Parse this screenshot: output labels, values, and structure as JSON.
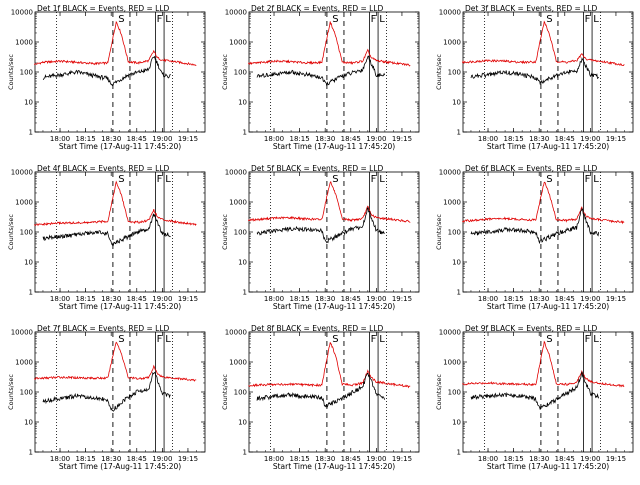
{
  "figure": {
    "ylabel": "Counts/sec",
    "xlabel": "Start Time (17-Aug-11 17:45:20)",
    "x_tick_labels": [
      "18:00",
      "18:15",
      "18:30",
      "18:45",
      "19:00",
      "19:15"
    ],
    "y_tick_labels": [
      "1",
      "10",
      "100",
      "1000",
      "10000"
    ],
    "marker_labels": {
      "S": "S",
      "F": "F",
      "L": "L"
    },
    "colors": {
      "events": "#000000",
      "lld": "#e00000"
    }
  },
  "chart_data": [
    {
      "type": "line",
      "title": "Det 1f BLACK = Events, RED = LLD",
      "xlabel": "Start Time (17-Aug-11 17:45:20)",
      "ylabel": "Counts/sec",
      "y_scale": "log",
      "ylim": [
        1,
        10000
      ],
      "x_ticks": [
        "18:00",
        "18:15",
        "18:30",
        "18:45",
        "19:00",
        "19:15"
      ],
      "markers": {
        "dotted": [
          "17:58",
          "19:06"
        ],
        "S_dashed": [
          "18:31",
          "18:41"
        ],
        "F_L_solid": [
          "18:56",
          "19:01"
        ]
      },
      "series": [
        {
          "color": "#e00000",
          "x": [
            "17:45",
            "17:50",
            "18:00",
            "18:10",
            "18:20",
            "18:28",
            "18:33",
            "18:36",
            "18:40",
            "18:46",
            "18:52",
            "18:55",
            "18:57",
            "19:00",
            "19:10",
            "19:20"
          ],
          "values": [
            180,
            210,
            230,
            210,
            190,
            200,
            4800,
            1800,
            220,
            200,
            240,
            500,
            300,
            250,
            210,
            170
          ]
        },
        {
          "color": "#000000",
          "x": [
            "17:50",
            "18:00",
            "18:10",
            "18:20",
            "18:28",
            "18:30",
            "18:31",
            "18:40",
            "18:45",
            "18:52",
            "18:55",
            "18:57",
            "19:00",
            "19:05"
          ],
          "values": [
            65,
            80,
            100,
            75,
            60,
            40,
            40,
            80,
            95,
            120,
            350,
            200,
            80,
            70
          ]
        }
      ]
    },
    {
      "type": "line",
      "title": "Det 2f BLACK = Events, RED = LLD",
      "xlabel": "Start Time (17-Aug-11 17:45:20)",
      "ylabel": "Counts/sec",
      "y_scale": "log",
      "ylim": [
        1,
        10000
      ],
      "x_ticks": [
        "18:00",
        "18:15",
        "18:30",
        "18:45",
        "19:00",
        "19:15"
      ],
      "markers": {
        "dotted": [
          "17:58",
          "19:06"
        ],
        "S_dashed": [
          "18:31",
          "18:41"
        ],
        "F_L_solid": [
          "18:56",
          "19:01"
        ]
      },
      "series": [
        {
          "color": "#e00000",
          "x": [
            "17:45",
            "17:50",
            "18:00",
            "18:10",
            "18:20",
            "18:28",
            "18:33",
            "18:36",
            "18:40",
            "18:46",
            "18:52",
            "18:55",
            "18:57",
            "19:00",
            "19:10",
            "19:20"
          ],
          "values": [
            190,
            200,
            230,
            220,
            200,
            210,
            4700,
            1700,
            210,
            200,
            230,
            520,
            300,
            240,
            200,
            170
          ]
        },
        {
          "color": "#000000",
          "x": [
            "17:50",
            "18:00",
            "18:10",
            "18:20",
            "18:28",
            "18:30",
            "18:31",
            "18:40",
            "18:45",
            "18:52",
            "18:55",
            "18:57",
            "19:00",
            "19:05"
          ],
          "values": [
            70,
            85,
            100,
            80,
            65,
            40,
            40,
            75,
            90,
            120,
            330,
            200,
            80,
            75
          ]
        }
      ]
    },
    {
      "type": "line",
      "title": "Det 3f BLACK = Events, RED = LLD",
      "xlabel": "Start Time (17-Aug-11 17:45:20)",
      "ylabel": "Counts/sec",
      "y_scale": "log",
      "ylim": [
        1,
        10000
      ],
      "x_ticks": [
        "18:00",
        "18:15",
        "18:30",
        "18:45",
        "19:00",
        "19:15"
      ],
      "markers": {
        "dotted": [
          "17:58",
          "19:06"
        ],
        "S_dashed": [
          "18:31",
          "18:41"
        ],
        "F_L_solid": [
          "18:56",
          "19:01"
        ]
      },
      "series": [
        {
          "color": "#e00000",
          "x": [
            "17:45",
            "17:50",
            "18:00",
            "18:10",
            "18:20",
            "18:28",
            "18:33",
            "18:36",
            "18:40",
            "18:46",
            "18:52",
            "18:55",
            "18:57",
            "19:00",
            "19:10",
            "19:20"
          ],
          "values": [
            210,
            220,
            240,
            230,
            210,
            220,
            4800,
            1800,
            230,
            210,
            240,
            400,
            280,
            250,
            210,
            170
          ]
        },
        {
          "color": "#000000",
          "x": [
            "17:50",
            "18:00",
            "18:10",
            "18:20",
            "18:28",
            "18:30",
            "18:31",
            "18:40",
            "18:45",
            "18:52",
            "18:55",
            "18:57",
            "19:00",
            "19:05"
          ],
          "values": [
            70,
            80,
            100,
            80,
            65,
            45,
            45,
            80,
            95,
            110,
            250,
            170,
            80,
            70
          ]
        }
      ]
    },
    {
      "type": "line",
      "title": "Det 4f BLACK = Events, RED = LLD",
      "xlabel": "Start Time (17-Aug-11 17:45:20)",
      "ylabel": "Counts/sec",
      "y_scale": "log",
      "ylim": [
        1,
        10000
      ],
      "x_ticks": [
        "18:00",
        "18:15",
        "18:30",
        "18:45",
        "19:00",
        "19:15"
      ],
      "markers": {
        "dotted": [
          "17:58",
          "19:06"
        ],
        "S_dashed": [
          "18:31",
          "18:41"
        ],
        "F_L_solid": [
          "18:56",
          "19:01"
        ]
      },
      "series": [
        {
          "color": "#e00000",
          "x": [
            "17:45",
            "17:50",
            "18:00",
            "18:10",
            "18:20",
            "18:28",
            "18:33",
            "18:36",
            "18:40",
            "18:46",
            "18:52",
            "18:55",
            "18:57",
            "19:00",
            "19:10",
            "19:20"
          ],
          "values": [
            170,
            180,
            200,
            200,
            210,
            230,
            4600,
            1700,
            220,
            210,
            250,
            550,
            320,
            260,
            210,
            180
          ]
        },
        {
          "color": "#000000",
          "x": [
            "17:50",
            "18:00",
            "18:10",
            "18:20",
            "18:28",
            "18:30",
            "18:31",
            "18:40",
            "18:45",
            "18:52",
            "18:55",
            "18:57",
            "19:00",
            "19:05"
          ],
          "values": [
            60,
            70,
            80,
            100,
            90,
            40,
            40,
            70,
            100,
            130,
            380,
            220,
            90,
            80
          ]
        }
      ]
    },
    {
      "type": "line",
      "title": "Det 5f BLACK = Events, RED = LLD",
      "xlabel": "Start Time (17-Aug-11 17:45:20)",
      "ylabel": "Counts/sec",
      "y_scale": "log",
      "ylim": [
        1,
        10000
      ],
      "x_ticks": [
        "18:00",
        "18:15",
        "18:30",
        "18:45",
        "19:00",
        "19:15"
      ],
      "markers": {
        "dotted": [
          "17:58",
          "19:06"
        ],
        "S_dashed": [
          "18:31",
          "18:41"
        ],
        "F_L_solid": [
          "18:56",
          "19:01"
        ]
      },
      "series": [
        {
          "color": "#e00000",
          "x": [
            "17:45",
            "17:50",
            "18:00",
            "18:10",
            "18:20",
            "18:28",
            "18:33",
            "18:36",
            "18:40",
            "18:46",
            "18:52",
            "18:55",
            "18:57",
            "19:00",
            "19:10",
            "19:20"
          ],
          "values": [
            250,
            260,
            290,
            300,
            270,
            260,
            4900,
            1900,
            270,
            250,
            280,
            700,
            380,
            300,
            260,
            220
          ]
        },
        {
          "color": "#000000",
          "x": [
            "17:50",
            "18:00",
            "18:10",
            "18:20",
            "18:28",
            "18:30",
            "18:31",
            "18:40",
            "18:45",
            "18:52",
            "18:55",
            "18:57",
            "19:00",
            "19:05"
          ],
          "values": [
            90,
            110,
            130,
            120,
            110,
            50,
            50,
            90,
            120,
            150,
            650,
            300,
            110,
            90
          ]
        }
      ]
    },
    {
      "type": "line",
      "title": "Det 6f BLACK = Events, RED = LLD",
      "xlabel": "Start Time (17-Aug-11 17:45:20)",
      "ylabel": "Counts/sec",
      "y_scale": "log",
      "ylim": [
        1,
        10000
      ],
      "x_ticks": [
        "18:00",
        "18:15",
        "18:30",
        "18:45",
        "19:00",
        "19:15"
      ],
      "markers": {
        "dotted": [
          "17:58",
          "19:06"
        ],
        "S_dashed": [
          "18:31",
          "18:41"
        ],
        "F_L_solid": [
          "18:56",
          "19:01"
        ]
      },
      "series": [
        {
          "color": "#e00000",
          "x": [
            "17:45",
            "17:50",
            "18:00",
            "18:10",
            "18:20",
            "18:28",
            "18:33",
            "18:36",
            "18:40",
            "18:46",
            "18:52",
            "18:55",
            "18:57",
            "19:00",
            "19:10",
            "19:20"
          ],
          "values": [
            230,
            240,
            270,
            280,
            260,
            250,
            4800,
            1800,
            260,
            240,
            270,
            650,
            360,
            280,
            240,
            210
          ]
        },
        {
          "color": "#000000",
          "x": [
            "17:50",
            "18:00",
            "18:10",
            "18:20",
            "18:28",
            "18:30",
            "18:31",
            "18:40",
            "18:45",
            "18:52",
            "18:55",
            "18:57",
            "19:00",
            "19:05"
          ],
          "values": [
            85,
            100,
            120,
            110,
            100,
            50,
            50,
            85,
            110,
            140,
            600,
            280,
            100,
            85
          ]
        }
      ]
    },
    {
      "type": "line",
      "title": "Det 7f BLACK = Events, RED = LLD",
      "xlabel": "Start Time (17-Aug-11 17:45:20)",
      "ylabel": "Counts/sec",
      "y_scale": "log",
      "ylim": [
        1,
        10000
      ],
      "x_ticks": [
        "18:00",
        "18:15",
        "18:30",
        "18:45",
        "19:00",
        "19:15"
      ],
      "markers": {
        "dotted": [
          "17:58",
          "19:06"
        ],
        "S_dashed": [
          "18:31",
          "18:41"
        ],
        "F_L_solid": [
          "18:56",
          "19:01"
        ]
      },
      "series": [
        {
          "color": "#e00000",
          "x": [
            "17:45",
            "17:50",
            "18:00",
            "18:10",
            "18:20",
            "18:28",
            "18:33",
            "18:36",
            "18:40",
            "18:46",
            "18:52",
            "18:55",
            "18:57",
            "19:00",
            "19:10",
            "19:20"
          ],
          "values": [
            280,
            290,
            310,
            300,
            290,
            290,
            4900,
            1900,
            300,
            280,
            300,
            700,
            420,
            320,
            280,
            240
          ]
        },
        {
          "color": "#000000",
          "x": [
            "17:50",
            "18:00",
            "18:10",
            "18:20",
            "18:28",
            "18:30",
            "18:31",
            "18:40",
            "18:45",
            "18:52",
            "18:55",
            "18:57",
            "19:00",
            "19:05"
          ],
          "values": [
            50,
            60,
            75,
            65,
            55,
            25,
            25,
            70,
            100,
            130,
            500,
            250,
            90,
            70
          ]
        }
      ]
    },
    {
      "type": "line",
      "title": "Det 8f BLACK = Events, RED = LLD",
      "xlabel": "Start Time (17-Aug-11 17:45:20)",
      "ylabel": "Counts/sec",
      "y_scale": "log",
      "ylim": [
        1,
        10000
      ],
      "x_ticks": [
        "18:00",
        "18:15",
        "18:30",
        "18:45",
        "19:00",
        "19:15"
      ],
      "markers": {
        "dotted": [
          "17:58",
          "19:06"
        ],
        "S_dashed": [
          "18:31",
          "18:41"
        ],
        "F_L_solid": [
          "18:56",
          "19:01"
        ]
      },
      "series": [
        {
          "color": "#e00000",
          "x": [
            "17:45",
            "17:50",
            "18:00",
            "18:10",
            "18:20",
            "18:28",
            "18:33",
            "18:36",
            "18:40",
            "18:46",
            "18:52",
            "18:55",
            "18:57",
            "19:00",
            "19:10",
            "19:20"
          ],
          "values": [
            160,
            170,
            180,
            180,
            170,
            170,
            4700,
            1700,
            180,
            170,
            200,
            500,
            300,
            220,
            180,
            150
          ]
        },
        {
          "color": "#000000",
          "x": [
            "17:50",
            "18:00",
            "18:10",
            "18:20",
            "18:28",
            "18:30",
            "18:31",
            "18:40",
            "18:45",
            "18:52",
            "18:55",
            "18:57",
            "19:00",
            "19:05"
          ],
          "values": [
            60,
            70,
            80,
            70,
            65,
            35,
            35,
            60,
            90,
            150,
            450,
            230,
            80,
            60
          ]
        }
      ]
    },
    {
      "type": "line",
      "title": "Det 9f BLACK = Events, RED = LLD",
      "xlabel": "Start Time (17-Aug-11 17:45:20)",
      "ylabel": "Counts/sec",
      "y_scale": "log",
      "ylim": [
        1,
        10000
      ],
      "x_ticks": [
        "18:00",
        "18:15",
        "18:30",
        "18:45",
        "19:00",
        "19:15"
      ],
      "markers": {
        "dotted": [
          "17:58",
          "19:06"
        ],
        "S_dashed": [
          "18:31",
          "18:41"
        ],
        "F_L_solid": [
          "18:56",
          "19:01"
        ]
      },
      "series": [
        {
          "color": "#e00000",
          "x": [
            "17:45",
            "17:50",
            "18:00",
            "18:10",
            "18:20",
            "18:28",
            "18:33",
            "18:36",
            "18:40",
            "18:46",
            "18:52",
            "18:55",
            "18:57",
            "19:00",
            "19:10",
            "19:20"
          ],
          "values": [
            180,
            190,
            200,
            190,
            180,
            180,
            4600,
            1700,
            190,
            180,
            210,
            500,
            300,
            220,
            180,
            160
          ]
        },
        {
          "color": "#000000",
          "x": [
            "17:50",
            "18:00",
            "18:10",
            "18:20",
            "18:28",
            "18:30",
            "18:31",
            "18:40",
            "18:45",
            "18:52",
            "18:55",
            "18:57",
            "19:00",
            "19:05"
          ],
          "values": [
            65,
            75,
            80,
            70,
            60,
            30,
            30,
            55,
            85,
            140,
            420,
            220,
            90,
            70
          ]
        }
      ]
    }
  ]
}
